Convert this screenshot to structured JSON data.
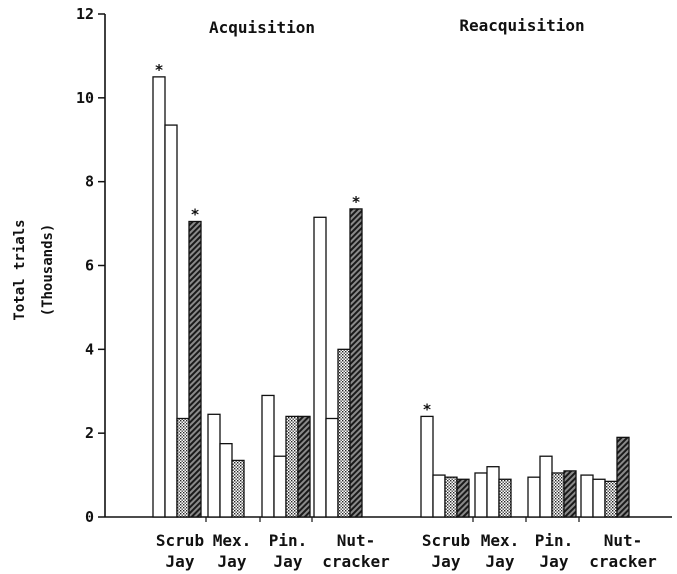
{
  "chart_data": {
    "type": "bar",
    "ylabel_line1": "Total trials",
    "ylabel_line2": "(Thousands)",
    "ylim": [
      0,
      12
    ],
    "yticks": [
      "0",
      "2",
      "4",
      "6",
      "8",
      "10",
      "12"
    ],
    "fill_styles": [
      "white",
      "white",
      "dotted",
      "hatched"
    ],
    "significance_marker": "*",
    "panels": [
      {
        "title": "Acquisition",
        "groups": [
          {
            "label_line1": "Scrub",
            "label_line2": "Jay",
            "values": [
              10.5,
              9.35,
              2.35,
              7.05
            ],
            "marked": [
              true,
              false,
              false,
              true
            ]
          },
          {
            "label_line1": "Mex.",
            "label_line2": "Jay",
            "values": [
              2.45,
              1.75,
              1.35,
              null
            ],
            "marked": [
              false,
              false,
              false,
              false
            ]
          },
          {
            "label_line1": "Pin.",
            "label_line2": "Jay",
            "values": [
              2.9,
              1.45,
              2.4,
              2.4
            ],
            "marked": [
              false,
              false,
              false,
              false
            ]
          },
          {
            "label_line1": "Nut-",
            "label_line2": "cracker",
            "values": [
              7.15,
              2.35,
              4.0,
              7.35
            ],
            "marked": [
              false,
              false,
              false,
              true
            ]
          }
        ]
      },
      {
        "title": "Reacquisition",
        "groups": [
          {
            "label_line1": "Scrub",
            "label_line2": "Jay",
            "values": [
              2.4,
              1.0,
              0.95,
              0.9
            ],
            "marked": [
              true,
              false,
              false,
              false
            ]
          },
          {
            "label_line1": "Mex.",
            "label_line2": "Jay",
            "values": [
              1.05,
              1.2,
              0.9,
              null
            ],
            "marked": [
              false,
              false,
              false,
              false
            ]
          },
          {
            "label_line1": "Pin.",
            "label_line2": "Jay",
            "values": [
              0.95,
              1.45,
              1.05,
              1.1
            ],
            "marked": [
              false,
              false,
              false,
              false
            ]
          },
          {
            "label_line1": "Nut-",
            "label_line2": "cracker",
            "values": [
              1.0,
              0.9,
              0.85,
              1.9
            ],
            "marked": [
              false,
              false,
              false,
              false
            ]
          }
        ]
      }
    ]
  }
}
